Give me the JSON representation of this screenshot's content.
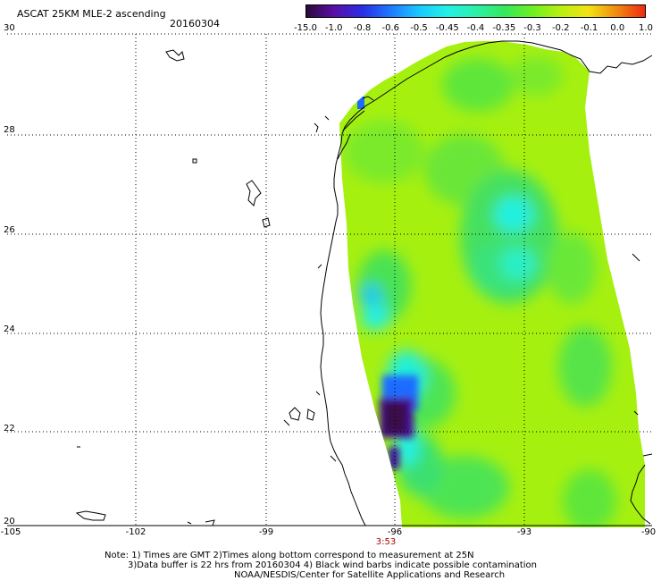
{
  "header": {
    "title": "ASCAT 25KM MLE-2 ascending",
    "date": "20160304"
  },
  "colorbar": {
    "labels": [
      "-15.0",
      "-1.0",
      "-0.8",
      "-0.6",
      "-0.5",
      "-0.45",
      "-0.4",
      "-0.35",
      "-0.3",
      "-0.2",
      "-0.1",
      "0.0",
      "1.0"
    ],
    "colors": [
      "#2a0a3a",
      "#5a0fa8",
      "#2a2ee6",
      "#1e7bff",
      "#1ac8ff",
      "#22f0e6",
      "#2cf0a8",
      "#34e85e",
      "#6cf022",
      "#b8f010",
      "#f4e214",
      "#f08a10",
      "#ee2a10"
    ]
  },
  "axes": {
    "lat_labels": [
      "30",
      "28",
      "26",
      "24",
      "22",
      "20"
    ],
    "lon_labels": [
      "-105",
      "-102",
      "-99",
      "-96",
      "-93",
      "-90"
    ]
  },
  "time_label": "3:53",
  "notes": {
    "line1": "Note: 1) Times are GMT 2)Times along bottom correspond to measurement at 25N",
    "line2": "3)Data buffer is 22 hrs from 20160304 4) Black wind barbs indicate possible contamination",
    "line3": "NOAA/NESDIS/Center for Satellite Applications and Research"
  },
  "palette": {
    "base_green": "#a6f010",
    "mid_green": "#5ee63a",
    "bright_green": "#34e060",
    "cyan": "#18f0e8",
    "light_cyan": "#2cf4d0",
    "blue": "#1e6cff",
    "purple": "#4a0a9a",
    "dark_purple": "#3a0a4a"
  }
}
